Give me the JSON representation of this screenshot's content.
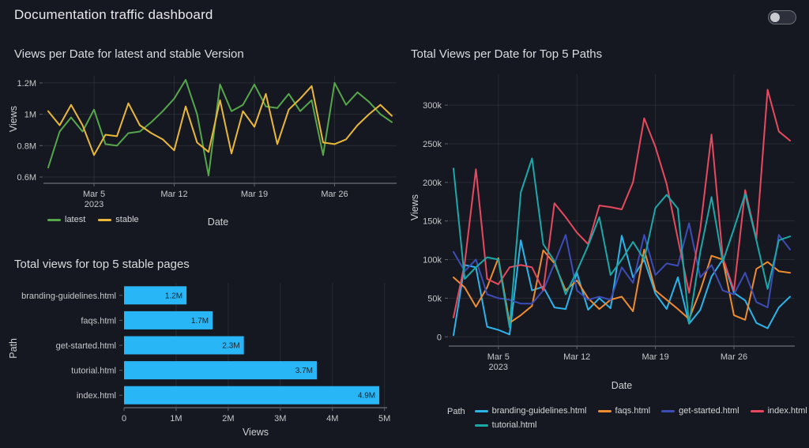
{
  "header": {
    "title": "Documentation traffic dashboard"
  },
  "toggle": {
    "state": "off"
  },
  "colors": {
    "background": "#161821",
    "title_text": "#e8e9ec",
    "text": "#d8d9da",
    "tick_text": "#c6c8cc",
    "grid": "rgba(255,255,255,0.08)",
    "axis": "#5d616b",
    "bar_fill": "#29b6f6",
    "bar_value_label": "#10222e"
  },
  "chart_data": [
    {
      "type": "line",
      "title": "Views per Date for latest and stable Version",
      "xlabel": "Date",
      "ylabel": "Views",
      "legend_position": "bottom-left",
      "grid": true,
      "dates": [
        "Mar 1",
        "Mar 2",
        "Mar 3",
        "Mar 4",
        "Mar 5",
        "Mar 6",
        "Mar 7",
        "Mar 8",
        "Mar 9",
        "Mar 10",
        "Mar 11",
        "Mar 12",
        "Mar 13",
        "Mar 14",
        "Mar 15",
        "Mar 16",
        "Mar 17",
        "Mar 18",
        "Mar 19",
        "Mar 20",
        "Mar 21",
        "Mar 22",
        "Mar 23",
        "Mar 24",
        "Mar 25",
        "Mar 26",
        "Mar 27",
        "Mar 28",
        "Mar 29",
        "Mar 30",
        "Mar 31"
      ],
      "x_ticks": [
        {
          "index": 4,
          "label": "Mar 5",
          "sub": "2023"
        },
        {
          "index": 11,
          "label": "Mar 12"
        },
        {
          "index": 18,
          "label": "Mar 19"
        },
        {
          "index": 25,
          "label": "Mar 26"
        }
      ],
      "y_ticks": [
        {
          "value": 600000,
          "label": "0.6M"
        },
        {
          "value": 800000,
          "label": "0.8M"
        },
        {
          "value": 1000000,
          "label": "1M"
        },
        {
          "value": 1200000,
          "label": "1.2M"
        }
      ],
      "ylim": [
        560000,
        1245000
      ],
      "series": [
        {
          "name": "latest",
          "color": "#56a64b",
          "values": [
            660000,
            890000,
            980000,
            890000,
            1030000,
            810000,
            800000,
            880000,
            890000,
            950000,
            1020000,
            1100000,
            1220000,
            1000000,
            610000,
            1190000,
            1020000,
            1060000,
            1190000,
            1050000,
            1040000,
            1130000,
            1020000,
            1090000,
            740000,
            1200000,
            1060000,
            1140000,
            1080000,
            1000000,
            950000
          ]
        },
        {
          "name": "stable",
          "color": "#eab839",
          "values": [
            1020000,
            930000,
            1060000,
            930000,
            740000,
            870000,
            860000,
            1070000,
            930000,
            880000,
            840000,
            770000,
            1050000,
            820000,
            760000,
            1090000,
            750000,
            1020000,
            920000,
            1130000,
            810000,
            1030000,
            1100000,
            1180000,
            820000,
            810000,
            840000,
            930000,
            1000000,
            1060000,
            990000
          ]
        }
      ]
    },
    {
      "type": "bar",
      "title": "Total views for top 5 stable pages",
      "xlabel": "Views",
      "ylabel": "Path",
      "orientation": "horizontal",
      "grid": true,
      "categories": [
        "branding-guidelines.html",
        "faqs.html",
        "get-started.html",
        "tutorial.html",
        "index.html"
      ],
      "values": [
        1200000,
        1700000,
        2300000,
        3700000,
        4900000
      ],
      "value_labels": [
        "1.2M",
        "1.7M",
        "2.3M",
        "3.7M",
        "4.9M"
      ],
      "bar_color": "#29b6f6",
      "x_ticks": [
        {
          "value": 0,
          "label": "0"
        },
        {
          "value": 1000000,
          "label": "1M"
        },
        {
          "value": 2000000,
          "label": "2M"
        },
        {
          "value": 3000000,
          "label": "3M"
        },
        {
          "value": 4000000,
          "label": "4M"
        },
        {
          "value": 5000000,
          "label": "5M"
        }
      ],
      "xlim": [
        0,
        5050000
      ]
    },
    {
      "type": "line",
      "title": "Total Views per Date for Top 5 Paths",
      "xlabel": "Date",
      "ylabel": "Views",
      "legend_title": "Path",
      "legend_position": "bottom",
      "grid": true,
      "dates": [
        "Mar 1",
        "Mar 2",
        "Mar 3",
        "Mar 4",
        "Mar 5",
        "Mar 6",
        "Mar 7",
        "Mar 8",
        "Mar 9",
        "Mar 10",
        "Mar 11",
        "Mar 12",
        "Mar 13",
        "Mar 14",
        "Mar 15",
        "Mar 16",
        "Mar 17",
        "Mar 18",
        "Mar 19",
        "Mar 20",
        "Mar 21",
        "Mar 22",
        "Mar 23",
        "Mar 24",
        "Mar 25",
        "Mar 26",
        "Mar 27",
        "Mar 28",
        "Mar 29",
        "Mar 30",
        "Mar 31"
      ],
      "x_ticks": [
        {
          "index": 4,
          "label": "Mar 5",
          "sub": "2023"
        },
        {
          "index": 11,
          "label": "Mar 12"
        },
        {
          "index": 18,
          "label": "Mar 19"
        },
        {
          "index": 25,
          "label": "Mar 26"
        }
      ],
      "y_ticks": [
        {
          "value": 0,
          "label": "0"
        },
        {
          "value": 50000,
          "label": "50k"
        },
        {
          "value": 100000,
          "label": "100k"
        },
        {
          "value": 150000,
          "label": "150k"
        },
        {
          "value": 200000,
          "label": "200k"
        },
        {
          "value": 250000,
          "label": "250k"
        },
        {
          "value": 300000,
          "label": "300k"
        }
      ],
      "ylim": [
        -12000,
        340000
      ],
      "series": [
        {
          "name": "branding-guidelines.html",
          "color": "#2bb4ea",
          "values": [
            2000,
            93000,
            90000,
            13000,
            9000,
            3000,
            125000,
            60000,
            65000,
            38000,
            36000,
            83000,
            35000,
            50000,
            37000,
            131000,
            77000,
            100000,
            56000,
            36000,
            77000,
            17000,
            35000,
            78000,
            100000,
            57000,
            47000,
            18000,
            11000,
            38000,
            52000
          ]
        },
        {
          "name": "faqs.html",
          "color": "#f08c2e",
          "values": [
            77000,
            64000,
            39000,
            64000,
            102000,
            18000,
            28000,
            40000,
            112000,
            95000,
            60000,
            73000,
            50000,
            36000,
            48000,
            52000,
            33000,
            113000,
            60000,
            48000,
            36000,
            23000,
            60000,
            105000,
            100000,
            28000,
            22000,
            88000,
            97000,
            85000,
            83000
          ]
        },
        {
          "name": "get-started.html",
          "color": "#3d4db7",
          "values": [
            110000,
            85000,
            100000,
            55000,
            50000,
            48000,
            43000,
            43000,
            60000,
            95000,
            132000,
            60000,
            48000,
            52000,
            48000,
            90000,
            70000,
            132000,
            80000,
            95000,
            92000,
            147000,
            77000,
            93000,
            60000,
            55000,
            83000,
            45000,
            38000,
            132000,
            113000
          ]
        },
        {
          "name": "index.html",
          "color": "#e8495f",
          "values": [
            25000,
            95000,
            217000,
            75000,
            68000,
            90000,
            93000,
            90000,
            60000,
            173000,
            155000,
            135000,
            120000,
            170000,
            168000,
            165000,
            200000,
            283000,
            246000,
            198000,
            127000,
            57000,
            140000,
            262000,
            103000,
            60000,
            190000,
            127000,
            320000,
            266000,
            254000
          ]
        },
        {
          "name": "tutorial.html",
          "color": "#1aa8a8",
          "values": [
            218000,
            75000,
            90000,
            103000,
            100000,
            12000,
            187000,
            231000,
            120000,
            98000,
            55000,
            85000,
            118000,
            155000,
            80000,
            100000,
            123000,
            100000,
            167000,
            184000,
            166000,
            17000,
            110000,
            181000,
            97000,
            140000,
            185000,
            125000,
            62000,
            125000,
            130000
          ]
        }
      ]
    }
  ]
}
